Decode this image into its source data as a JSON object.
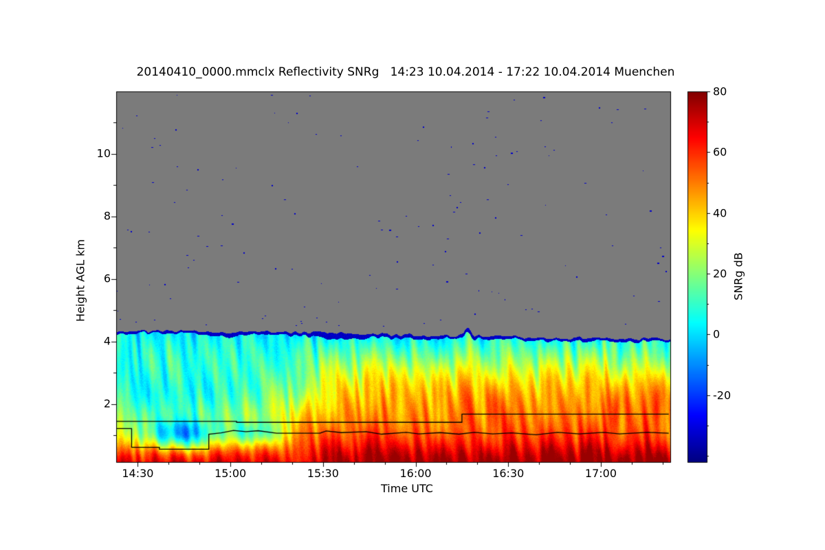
{
  "chart_data": {
    "type": "heatmap",
    "title": "20140410_0000.mmclx Reflectivity SNRg   14:23 10.04.2014 - 17:22 10.04.2014 Muenchen",
    "xlabel": "Time UTC",
    "ylabel": "Height AGL km",
    "colorbar_label": "SNRg dB",
    "x_axis": {
      "start_min": 863,
      "end_min": 1042.5,
      "major_ticks": [
        {
          "t": 870,
          "label": "14:30"
        },
        {
          "t": 900,
          "label": "15:00"
        },
        {
          "t": 930,
          "label": "15:30"
        },
        {
          "t": 960,
          "label": "16:00"
        },
        {
          "t": 990,
          "label": "16:30"
        },
        {
          "t": 1020,
          "label": "17:00"
        }
      ],
      "minor_step_min": 10
    },
    "y_axis": {
      "min_km": 0.15,
      "max_km": 12.0,
      "major_ticks": [
        {
          "v": 2,
          "label": "2"
        },
        {
          "v": 4,
          "label": "4"
        },
        {
          "v": 6,
          "label": "6"
        },
        {
          "v": 8,
          "label": "8"
        },
        {
          "v": 10,
          "label": "10"
        }
      ],
      "minor_ticks": [
        1,
        3,
        5,
        7,
        9,
        11
      ]
    },
    "colorbar": {
      "min_db": -42,
      "max_db": 80,
      "major_ticks": [
        {
          "v": 80,
          "label": "80"
        },
        {
          "v": 60,
          "label": "60"
        },
        {
          "v": 40,
          "label": "40"
        },
        {
          "v": 20,
          "label": "20"
        },
        {
          "v": 0,
          "label": "0"
        },
        {
          "v": -20,
          "label": "-20"
        }
      ],
      "minor_ticks": [
        -40,
        -30,
        -10,
        10,
        30,
        50,
        70
      ]
    },
    "colormap": {
      "name": "jet",
      "stops": [
        [
          0.0,
          [
            0,
            0,
            128
          ]
        ],
        [
          0.125,
          [
            0,
            0,
            255
          ]
        ],
        [
          0.375,
          [
            0,
            255,
            255
          ]
        ],
        [
          0.625,
          [
            255,
            255,
            0
          ]
        ],
        [
          0.875,
          [
            255,
            0,
            0
          ]
        ],
        [
          1.0,
          [
            128,
            0,
            0
          ]
        ]
      ]
    },
    "no_signal_color_rgb": [
      123,
      123,
      123
    ],
    "field_model": {
      "cloud_top_keypoints": [
        [
          863,
          4.34
        ],
        [
          920,
          4.3
        ],
        [
          960,
          4.2
        ],
        [
          1000,
          4.13
        ],
        [
          1042,
          4.08
        ]
      ],
      "cloud_top_jitter_km": 0.05,
      "cloud_top_spike": {
        "t": 977,
        "amp_km": 0.3,
        "sigma_min": 1.0
      },
      "top_band": {
        "value_db": -34,
        "base_km": 0.05,
        "noise_km": 0.07,
        "patches": [
          {
            "t": 900,
            "amp_km": 0.07,
            "sigma_min": 4
          },
          {
            "t": 935,
            "amp_km": 0.13,
            "sigma_min": 5
          },
          {
            "t": 977,
            "amp_km": 0.06,
            "sigma_min": 1.5
          }
        ]
      },
      "surface_db": 64,
      "lapse_db_per_km": 14.5,
      "surface_boost": {
        "amp_early_db": 6,
        "amp_late_db": 13,
        "center_km": 0.15,
        "sigma_km": 0.45
      },
      "mid_boost": {
        "amp_db": 14,
        "center_km": 2.3,
        "sigma_km": 1.0
      },
      "intensify_between_min": [
        918,
        952
      ],
      "left_cool": {
        "amp_db": 26,
        "center_km": 2.1,
        "sigma_km": 0.8,
        "fade_between_min": [
          895,
          930
        ]
      },
      "low_blobs": [
        {
          "t": 884,
          "sigma_min": 9,
          "center_km": 1.0,
          "sigma_km": 0.35,
          "amp_db": 48
        },
        {
          "t": 908,
          "sigma_min": 6,
          "center_km": 1.05,
          "sigma_km": 0.3,
          "amp_db": 30
        }
      ],
      "streaks": [
        {
          "amp_db": 6,
          "t_freq": 0.9,
          "h_freq": 2.5
        },
        {
          "amp_db": 3,
          "t_freq": 2.1,
          "h_freq": 0.8
        }
      ],
      "column_noise_db": 5,
      "pixel_noise_db": 2.5,
      "vertical_streak": {
        "t": 977,
        "amp_db": 16,
        "sigma_min": 1.2,
        "center_km": 3.0,
        "sigma_km": 1.1
      },
      "clamp_db": [
        -40,
        77
      ]
    },
    "overlay_lines": [
      {
        "name": "upper-boundary-line",
        "points_min_km": [
          [
            863,
            1.45
          ],
          [
            902,
            1.45
          ],
          [
            902,
            1.42
          ],
          [
            975,
            1.42
          ],
          [
            975,
            1.68
          ],
          [
            1042,
            1.68
          ]
        ]
      },
      {
        "name": "lower-boundary-line",
        "points_min_km": [
          [
            863,
            1.22
          ],
          [
            868,
            1.22
          ],
          [
            868,
            0.62
          ],
          [
            877,
            0.62
          ],
          [
            877,
            0.56
          ],
          [
            893,
            0.56
          ],
          [
            893,
            1.04
          ],
          [
            897,
            1.08
          ],
          [
            901,
            1.16
          ],
          [
            905,
            1.12
          ],
          [
            909,
            1.15
          ],
          [
            915,
            1.07
          ],
          [
            929,
            1.07
          ],
          [
            931,
            1.14
          ],
          [
            936,
            1.09
          ],
          [
            944,
            1.12
          ],
          [
            949,
            1.04
          ],
          [
            957,
            1.1
          ],
          [
            961,
            1.05
          ],
          [
            968,
            1.09
          ],
          [
            974,
            1.04
          ],
          [
            979,
            1.1
          ],
          [
            985,
            1.05
          ],
          [
            991,
            1.08
          ],
          [
            999,
            1.02
          ],
          [
            1006,
            1.1
          ],
          [
            1013,
            1.05
          ],
          [
            1021,
            1.1
          ],
          [
            1026,
            1.05
          ],
          [
            1035,
            1.1
          ],
          [
            1042,
            1.07
          ]
        ]
      }
    ],
    "noise_dots": {
      "count": 120,
      "near_top_count": 14,
      "value_db": -33,
      "seed": 7
    }
  }
}
